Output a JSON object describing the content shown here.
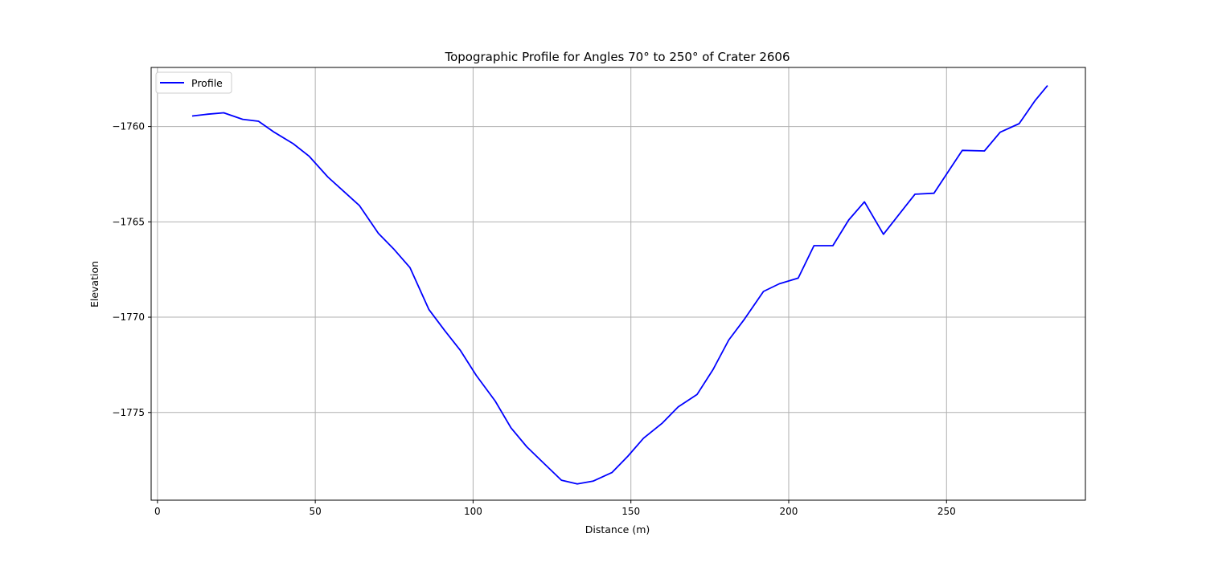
{
  "chart_data": {
    "type": "line",
    "title": "Topographic Profile for Angles 70° to 250° of Crater 2606",
    "xlabel": "Distance (m)",
    "ylabel": "Elevation",
    "xlim": [
      -2,
      294
    ],
    "ylim": [
      -1779.6,
      -1756.9
    ],
    "xticks": [
      0,
      50,
      100,
      150,
      200,
      250
    ],
    "yticks": [
      -1760,
      -1765,
      -1770,
      -1775
    ],
    "grid": true,
    "legend": {
      "placement": "upper-left",
      "entries": [
        "Profile"
      ]
    },
    "series": [
      {
        "name": "Profile",
        "color": "#0000ff",
        "x": [
          11,
          16,
          21,
          27,
          32,
          37,
          43,
          48,
          54,
          59,
          64,
          70,
          75,
          80,
          86,
          91,
          96,
          101,
          107,
          112,
          117,
          122,
          128,
          133,
          138,
          144,
          149,
          154,
          160,
          165,
          171,
          176,
          181,
          186,
          192,
          197,
          203,
          208,
          214,
          219,
          224,
          230,
          235,
          240,
          246,
          251,
          255,
          262,
          267,
          273,
          278,
          282
        ],
        "y": [
          -1759.45,
          -1759.35,
          -1759.28,
          -1759.62,
          -1759.72,
          -1760.3,
          -1760.9,
          -1761.55,
          -1762.65,
          -1763.4,
          -1764.15,
          -1765.6,
          -1766.45,
          -1767.4,
          -1769.6,
          -1770.7,
          -1771.75,
          -1773.05,
          -1774.4,
          -1775.8,
          -1776.8,
          -1777.6,
          -1778.55,
          -1778.75,
          -1778.6,
          -1778.15,
          -1777.3,
          -1776.35,
          -1775.55,
          -1774.7,
          -1774.05,
          -1772.75,
          -1771.2,
          -1770.1,
          -1768.65,
          -1768.25,
          -1767.95,
          -1766.25,
          -1766.25,
          -1764.9,
          -1763.95,
          -1765.65,
          -1764.6,
          -1763.55,
          -1763.5,
          -1762.25,
          -1761.25,
          -1761.28,
          -1760.3,
          -1759.85,
          -1758.65,
          -1757.85
        ]
      }
    ]
  }
}
